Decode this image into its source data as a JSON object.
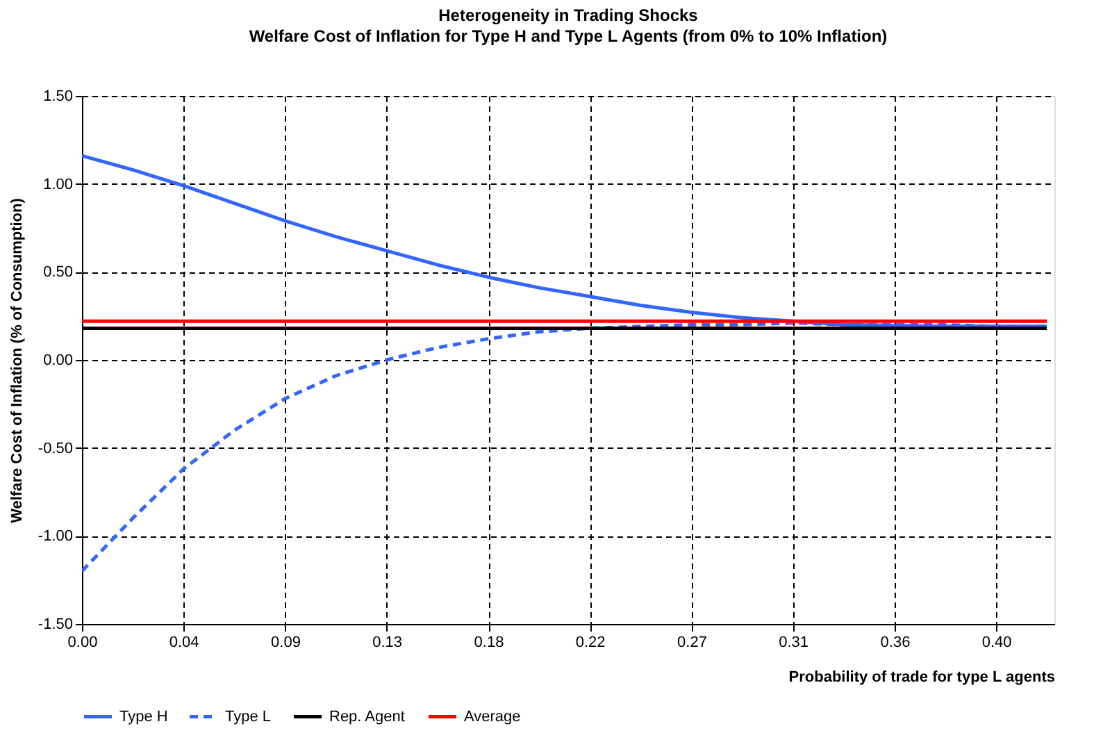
{
  "chart_data": {
    "type": "line",
    "title": "Heterogeneity in Trading Shocks",
    "subtitle": "Welfare Cost of Inflation for Type H and Type L Agents (from 0% to 10% Inflation)",
    "xlabel": "Probability of trade for type L agents",
    "ylabel": "Welfare Cost of Inflation (% of Consumption)",
    "x": [
      0,
      0.0222,
      0.0444,
      0.0667,
      0.0889,
      0.1111,
      0.1333,
      0.1556,
      0.1778,
      0.2,
      0.2222,
      0.2444,
      0.2667,
      0.2889,
      0.3111,
      0.3333,
      0.3556,
      0.3778,
      0.4,
      0.4222
    ],
    "series": [
      {
        "name": "Type H",
        "color": "#3366ff",
        "line_style": "solid",
        "values": [
          1.16,
          1.08,
          0.99,
          0.89,
          0.79,
          0.7,
          0.62,
          0.54,
          0.47,
          0.41,
          0.36,
          0.31,
          0.27,
          0.24,
          0.22,
          0.2,
          0.195,
          0.19,
          0.19,
          0.19
        ]
      },
      {
        "name": "Type L",
        "color": "#3366ff",
        "line_style": "dashed",
        "values": [
          -1.2,
          -0.9,
          -0.62,
          -0.4,
          -0.22,
          -0.09,
          0.0,
          0.07,
          0.12,
          0.16,
          0.18,
          0.19,
          0.2,
          0.2,
          0.21,
          0.2,
          0.2,
          0.2,
          0.19,
          0.19
        ]
      },
      {
        "name": "Rep. Agent",
        "color": "#000000",
        "line_style": "solid",
        "values": [
          0.18,
          0.18,
          0.18,
          0.18,
          0.18,
          0.18,
          0.18,
          0.18,
          0.18,
          0.18,
          0.18,
          0.18,
          0.18,
          0.18,
          0.18,
          0.18,
          0.18,
          0.18,
          0.18,
          0.18
        ]
      },
      {
        "name": "Average",
        "color": "#ff0000",
        "line_style": "solid",
        "values": [
          0.22,
          0.22,
          0.22,
          0.22,
          0.22,
          0.22,
          0.22,
          0.22,
          0.22,
          0.22,
          0.22,
          0.22,
          0.22,
          0.22,
          0.22,
          0.22,
          0.22,
          0.22,
          0.22,
          0.22
        ]
      }
    ],
    "xlim": [
      0,
      0.4255
    ],
    "xticks": [
      {
        "value": 0,
        "label": "0.00"
      },
      {
        "value": 0.0444,
        "label": "0.04"
      },
      {
        "value": 0.0889,
        "label": "0.09"
      },
      {
        "value": 0.1333,
        "label": "0.13"
      },
      {
        "value": 0.1778,
        "label": "0.18"
      },
      {
        "value": 0.2222,
        "label": "0.22"
      },
      {
        "value": 0.2667,
        "label": "0.27"
      },
      {
        "value": 0.3111,
        "label": "0.31"
      },
      {
        "value": 0.3556,
        "label": "0.36"
      },
      {
        "value": 0.4,
        "label": "0.40"
      }
    ],
    "ylim": [
      -1.5,
      1.5
    ],
    "yticks": [
      {
        "value": -1.5,
        "label": "-1.50"
      },
      {
        "value": -1,
        "label": "-1.00"
      },
      {
        "value": -0.5,
        "label": "-0.50"
      },
      {
        "value": 0,
        "label": "0.00"
      },
      {
        "value": 0.5,
        "label": "0.50"
      },
      {
        "value": 1,
        "label": "1.00"
      },
      {
        "value": 1.5,
        "label": "1.50"
      }
    ],
    "grid": true,
    "legend": "bottom",
    "marker": "none"
  }
}
